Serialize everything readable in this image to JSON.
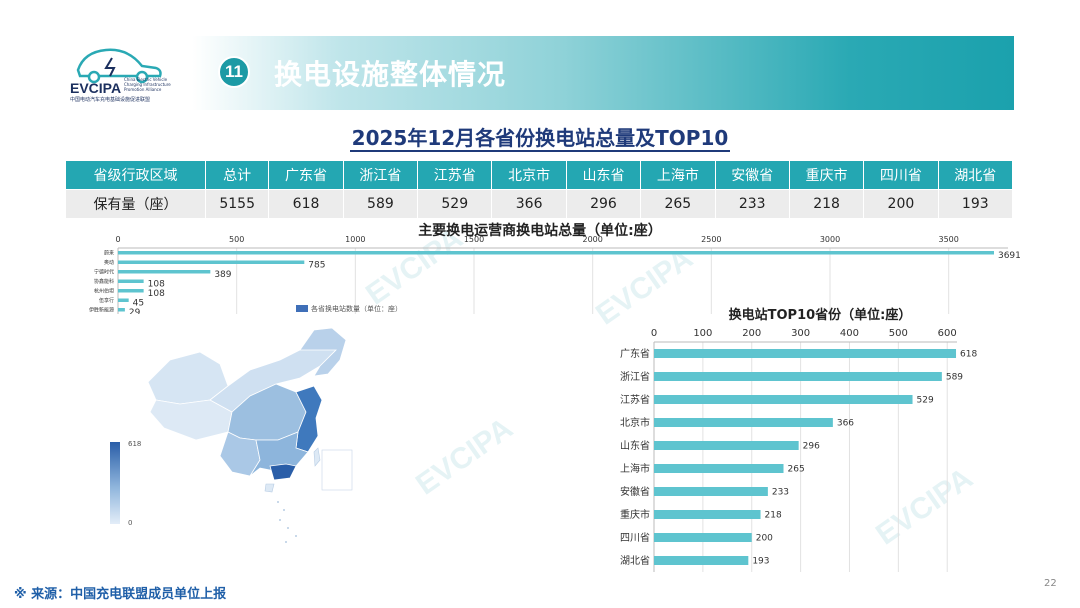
{
  "header": {
    "logo_text": "EVCIPA",
    "logo_subtitle": "中国电动汽车充电基础设施促进联盟",
    "logo_en": "China Electric Vehicle Charging Infrastructure Promotion Alliance",
    "section_number": "11",
    "section_title": "换电设施整体情况"
  },
  "main_title": "2025年12月各省份换电站总量及TOP10",
  "table": {
    "row_header_label": "省级行政区域",
    "row_value_label": "保有量（座）",
    "columns": [
      {
        "name": "总计",
        "value": "5155"
      },
      {
        "name": "广东省",
        "value": "618"
      },
      {
        "name": "浙江省",
        "value": "589"
      },
      {
        "name": "江苏省",
        "value": "529"
      },
      {
        "name": "北京市",
        "value": "366"
      },
      {
        "name": "山东省",
        "value": "296"
      },
      {
        "name": "上海市",
        "value": "265"
      },
      {
        "name": "安徽省",
        "value": "233"
      },
      {
        "name": "重庆市",
        "value": "218"
      },
      {
        "name": "四川省",
        "value": "200"
      },
      {
        "name": "湖北省",
        "value": "193"
      }
    ]
  },
  "map": {
    "legend_label": "各省换电站数量（单位：座）",
    "scale_max": "618",
    "scale_min": "0"
  },
  "chart_data": [
    {
      "type": "bar",
      "orientation": "horizontal",
      "title": "主要换电运营商换电站总量（单位:座）",
      "categories": [
        "蔚来",
        "奥动",
        "宁德时代",
        "协鑫能科",
        "杭州伯坦",
        "伍享行",
        "伊胜新能源"
      ],
      "values": [
        3691,
        785,
        389,
        108,
        108,
        45,
        29
      ],
      "xlim": [
        0,
        3750
      ],
      "xticks": [
        0,
        500,
        1000,
        1500,
        2000,
        2500,
        3000,
        3500
      ],
      "axis_position": "top",
      "color": "#5ec4cf",
      "grid": true
    },
    {
      "type": "bar",
      "orientation": "horizontal",
      "title": "换电站TOP10省份（单位:座）",
      "categories": [
        "广东省",
        "浙江省",
        "江苏省",
        "北京市",
        "山东省",
        "上海市",
        "安徽省",
        "重庆市",
        "四川省",
        "湖北省"
      ],
      "values": [
        618,
        589,
        529,
        366,
        296,
        265,
        233,
        218,
        200,
        193
      ],
      "xlim": [
        0,
        620
      ],
      "xticks": [
        0,
        100,
        200,
        300,
        400,
        500,
        600
      ],
      "axis_position": "top",
      "color": "#5ec4cf",
      "grid": true
    }
  ],
  "source": "※ 来源：中国充电联盟成员单位上报",
  "page_number": "22",
  "watermark": "EVCIPA"
}
